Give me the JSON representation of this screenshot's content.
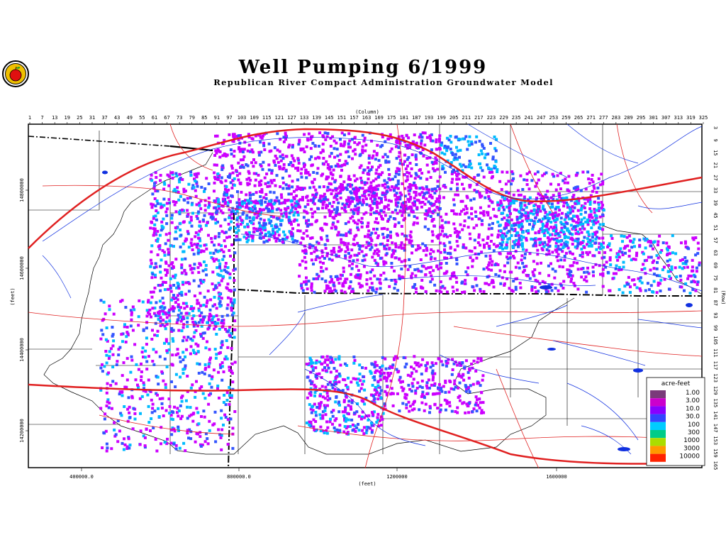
{
  "title": "Well Pumping 6/1999",
  "subtitle": "Republican River Compact Administration Groundwater Model",
  "column_axis": {
    "label": "(Column)",
    "ticks": [
      "1",
      "7",
      "13",
      "19",
      "25",
      "31",
      "37",
      "43",
      "49",
      "55",
      "61",
      "67",
      "73",
      "79",
      "85",
      "91",
      "97",
      "103",
      "109",
      "115",
      "121",
      "127",
      "133",
      "139",
      "145",
      "151",
      "157",
      "163",
      "169",
      "175",
      "181",
      "187",
      "193",
      "199",
      "205",
      "211",
      "217",
      "223",
      "229",
      "235",
      "241",
      "247",
      "253",
      "259",
      "265",
      "271",
      "277",
      "283",
      "289",
      "295",
      "301",
      "307",
      "313",
      "319",
      "325"
    ]
  },
  "row_axis": {
    "label": "(Row)",
    "ticks": [
      "3",
      "9",
      "15",
      "21",
      "27",
      "33",
      "39",
      "45",
      "51",
      "57",
      "63",
      "69",
      "75",
      "81",
      "87",
      "93",
      "99",
      "105",
      "111",
      "117",
      "123",
      "129",
      "135",
      "141",
      "147",
      "153",
      "159",
      "165"
    ]
  },
  "x_axis": {
    "label": "(feet)",
    "ticks": [
      "400000.0",
      "800000.0",
      "1200000",
      "1600000"
    ]
  },
  "y_axis": {
    "label": "(feet)",
    "ticks": [
      "14800000",
      "14600000",
      "14400000",
      "14200000"
    ]
  },
  "legend": {
    "title": "acre-feet",
    "items": [
      {
        "label": "1.00",
        "color": "#7a3a7a"
      },
      {
        "label": "3.00",
        "color": "#cc00cc"
      },
      {
        "label": "10.0",
        "color": "#8800ff"
      },
      {
        "label": "30.0",
        "color": "#3344ff"
      },
      {
        "label": "100",
        "color": "#00ccff"
      },
      {
        "label": "300",
        "color": "#00cc88"
      },
      {
        "label": "1000",
        "color": "#aadd00"
      },
      {
        "label": "3000",
        "color": "#ff9900"
      },
      {
        "label": "10000",
        "color": "#ff2200"
      }
    ]
  },
  "colors": {
    "roads": "#e02020",
    "rivers": "#1030e0",
    "boundary": "#000000",
    "pump_low": "#cc00ff",
    "pump_mid": "#3355ff",
    "pump_high": "#00bbff"
  },
  "logo_icon": "apple-seal-icon"
}
